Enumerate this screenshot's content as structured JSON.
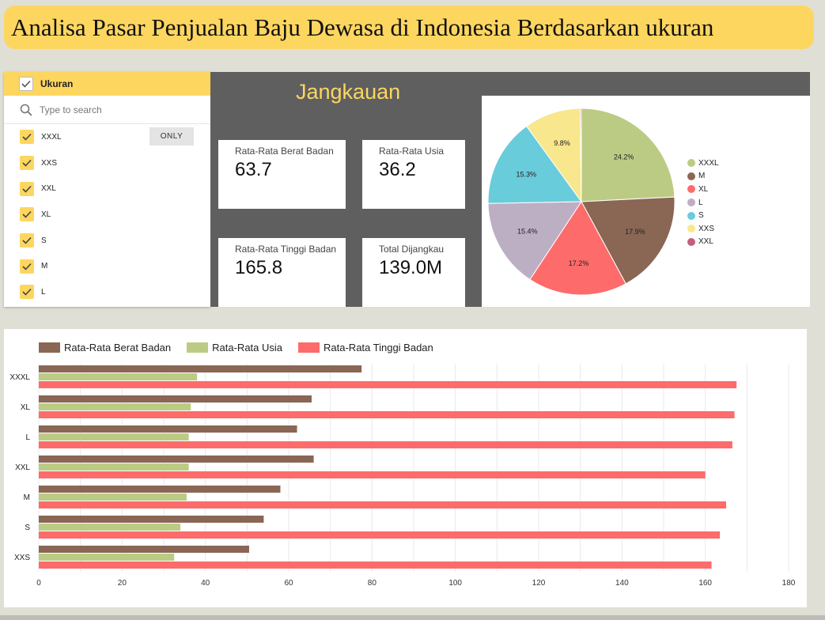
{
  "title": "Analisa Pasar Penjualan Baju Dewasa di Indonesia Berdasarkan ukuran",
  "filter": {
    "header": "Ukuran",
    "search_placeholder": "Type to search",
    "only_label": "ONLY",
    "items": [
      "XXXL",
      "XXS",
      "XXL",
      "XL",
      "S",
      "M",
      "L"
    ]
  },
  "section_title": "Jangkauan",
  "cards": [
    {
      "label": "Rata-Rata Berat Badan",
      "value": "63.7"
    },
    {
      "label": "Rata-Rata Usia",
      "value": "36.2"
    },
    {
      "label": "Rata-Rata Tinggi Badan",
      "value": "165.8"
    },
    {
      "label": "Total Dijangkau",
      "value": "139.0M"
    }
  ],
  "colors": {
    "accent": "#fdd660",
    "dark_panel": "#5f5f5f",
    "berat": "#8a6655",
    "usia": "#bccb84",
    "tinggi": "#fd6b6b"
  },
  "chart_data": [
    {
      "type": "pie",
      "labels": [
        "XXXL",
        "M",
        "XL",
        "L",
        "S",
        "XXS",
        "XXL"
      ],
      "values": [
        24.2,
        17.9,
        17.2,
        15.4,
        15.3,
        9.8,
        0.2
      ],
      "value_labels": [
        "24.2%",
        "17.9%",
        "17.2%",
        "15.4%",
        "15.3%",
        "9.8%",
        ""
      ],
      "colors": [
        "#bccb84",
        "#8a6655",
        "#fd6b6b",
        "#bcafc4",
        "#69ccdb",
        "#f8e78c",
        "#c55f7c"
      ],
      "legend_position": "right"
    },
    {
      "type": "bar",
      "orientation": "horizontal",
      "categories": [
        "XXXL",
        "XL",
        "L",
        "XXL",
        "M",
        "S",
        "XXS"
      ],
      "series": [
        {
          "name": "Rata-Rata Berat Badan",
          "values": [
            77.5,
            65.5,
            62,
            66,
            58,
            54,
            50.5
          ],
          "color": "#8a6655"
        },
        {
          "name": "Rata-Rata Usia",
          "values": [
            38,
            36.5,
            36,
            36,
            35.5,
            34,
            32.5
          ],
          "color": "#bccb84"
        },
        {
          "name": "Rata-Rata Tinggi Badan",
          "values": [
            167.5,
            167,
            166.5,
            160,
            165,
            163.5,
            161.5
          ],
          "color": "#fd6b6b"
        }
      ],
      "xlim": [
        0,
        180
      ],
      "xticks": [
        0,
        20,
        40,
        60,
        80,
        100,
        120,
        140,
        160,
        180
      ],
      "legend_position": "top-left",
      "grid": true
    }
  ]
}
